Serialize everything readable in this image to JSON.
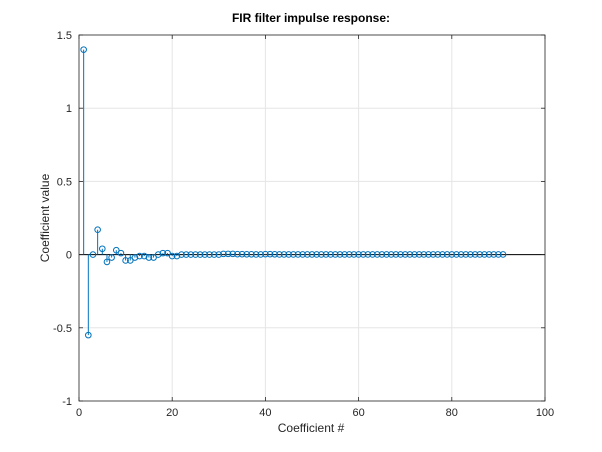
{
  "chart_data": {
    "type": "stem",
    "title": "FIR filter impulse response:",
    "xlabel": "Coefficient #",
    "ylabel": "Coefficient value",
    "xlim": [
      0,
      100
    ],
    "ylim": [
      -1,
      1.5
    ],
    "xticks": [
      0,
      20,
      40,
      60,
      80,
      100
    ],
    "yticks": [
      -1,
      -0.5,
      0,
      0.5,
      1,
      1.5
    ],
    "xtick_labels": [
      "0",
      "20",
      "40",
      "60",
      "80",
      "100"
    ],
    "ytick_labels": [
      "-1",
      "-0.5",
      "0",
      "0.5",
      "1",
      "1.5"
    ],
    "grid": true,
    "colors": {
      "series": "#0072BD",
      "baseline": "#000000",
      "grid": "#e5e5e5",
      "axes": "#262626"
    },
    "series": [
      {
        "x": [
          1,
          2,
          3,
          4,
          5,
          6,
          7,
          8,
          9,
          10,
          11,
          12,
          13,
          14,
          15,
          16,
          17,
          18,
          19,
          20,
          21,
          22,
          23,
          24,
          25,
          26,
          27,
          28,
          29,
          30,
          31,
          32,
          33,
          34,
          35,
          36,
          37,
          38,
          39,
          40,
          41,
          42,
          43,
          44,
          45,
          46,
          47,
          48,
          49,
          50,
          51,
          52,
          53,
          54,
          55,
          56,
          57,
          58,
          59,
          60,
          61,
          62,
          63,
          64,
          65,
          66,
          67,
          68,
          69,
          70,
          71,
          72,
          73,
          74,
          75,
          76,
          77,
          78,
          79,
          80,
          81,
          82,
          83,
          84,
          85,
          86,
          87,
          88,
          89,
          90,
          91
        ],
        "values": [
          1.4,
          -0.55,
          0.0,
          0.17,
          0.04,
          -0.05,
          -0.02,
          0.03,
          0.01,
          -0.04,
          -0.04,
          -0.02,
          -0.01,
          -0.01,
          -0.02,
          -0.02,
          0.0,
          0.01,
          0.01,
          -0.01,
          -0.01,
          0.0,
          0.0,
          0.0,
          0.0,
          0.0,
          0.0,
          0.0,
          0.0,
          0.0,
          0.005,
          0.005,
          0.005,
          0.003,
          0.003,
          0.002,
          0.002,
          0.001,
          0.001,
          0.003,
          0.003,
          0.002,
          0.001,
          0.001,
          0.001,
          0.001,
          0.001,
          0.001,
          0.001,
          0.001,
          0.001,
          0.001,
          0.001,
          0.001,
          0.001,
          0.001,
          0.001,
          0.001,
          0.001,
          0.001,
          0.001,
          0.001,
          0.001,
          0.001,
          0.001,
          0.001,
          0.001,
          0.001,
          0.001,
          0.001,
          0.001,
          0.001,
          0.001,
          0.001,
          0.001,
          0.001,
          0.001,
          0.001,
          0.001,
          0.001,
          0.001,
          0.001,
          0.001,
          0.001,
          0.001,
          0.001,
          0.001,
          0.001,
          0.001,
          0.001,
          0.001
        ]
      }
    ]
  }
}
